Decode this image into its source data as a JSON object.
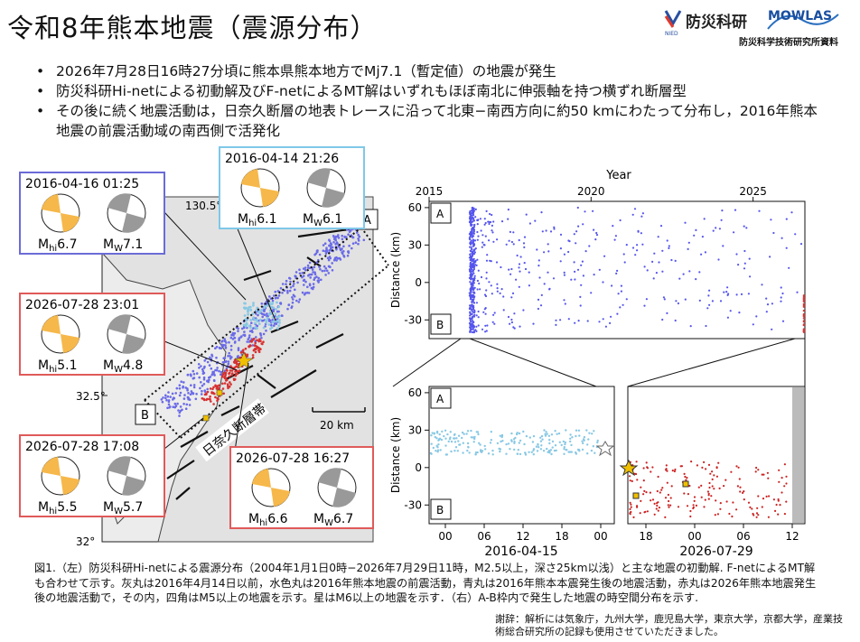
{
  "title": "令和8年熊本地震（震源分布）",
  "logos": {
    "nied_mark": "NIED",
    "nied_name": "防災科研",
    "mowlas": "MOWLAS",
    "subtitle": "防災科学技術研究所資料"
  },
  "bullets": [
    "2026年7月28日16時27分頃に熊本県熊本地方でMj7.1（暫定値）の地震が発生",
    "防災科研Hi-netによる初動解及びF-netによるMT解はいずれもほぼ南北に伸張軸を持つ横ずれ断層型",
    "その後に続く地震活動は，日奈久断層の地表トレースに沿って北東−南西方向に約50 kmにわたって分布し，2016年熊本地震の前震活動域の南西側で活発化"
  ],
  "map": {
    "lon_label": "130.5°",
    "lat_labels": [
      "32.5°",
      "32°"
    ],
    "scale_label": "20 km",
    "fault_label": "日奈久断層帯",
    "box_labels": [
      "A",
      "B"
    ]
  },
  "mechanisms": [
    {
      "datetime": "2016-04-16 01:25",
      "hi_mag": "6.7",
      "w_mag": "7.1",
      "color": "#6b6bd8"
    },
    {
      "datetime": "2016-04-14 21:26",
      "hi_mag": "6.1",
      "w_mag": "6.1",
      "color": "#7fc8e8"
    },
    {
      "datetime": "2026-07-28 23:01",
      "hi_mag": "5.1",
      "w_mag": "4.8",
      "color": "#e05a5a"
    },
    {
      "datetime": "2026-07-28 17:08",
      "hi_mag": "5.5",
      "w_mag": "5.7",
      "color": "#e05a5a"
    },
    {
      "datetime": "2026-07-28 16:27",
      "hi_mag": "6.6",
      "w_mag": "6.7",
      "color": "#e05a5a"
    }
  ],
  "mag_prefix": {
    "hi": "M",
    "hi_sub": "hi",
    "w": "M",
    "w_sub": "W"
  },
  "chart_data": [
    {
      "type": "scatter",
      "title": "Year",
      "xlabel": "Year",
      "ylabel": "Distance (km)",
      "xlim": [
        2015,
        2026.6
      ],
      "ylim": [
        -45,
        65
      ],
      "xticks": [
        "2015",
        "2020",
        "2025"
      ],
      "yticks": [
        "60",
        "30",
        "0",
        "-30"
      ],
      "box_labels": [
        "A",
        "B"
      ],
      "series": [
        {
          "color": "#5555ee",
          "marker": "dot",
          "density": "dense at 2016.3, sparse afterwards",
          "distance_range": [
            -40,
            60
          ]
        },
        {
          "color": "#dd3333",
          "marker": "dot",
          "x": 2026.57,
          "distance_range": [
            -40,
            -5
          ]
        }
      ]
    },
    {
      "type": "scatter",
      "xlabel": "2016-04-15",
      "ylabel": "Distance (km)",
      "ylim": [
        -45,
        65
      ],
      "xticks": [
        "00",
        "06",
        "12",
        "18",
        "00"
      ],
      "yticks": [
        "60",
        "30",
        "0",
        "-30"
      ],
      "box_labels": [
        "A",
        "B"
      ],
      "series": [
        {
          "color": "#88c8e4",
          "marker": "dot",
          "distance_range": [
            10,
            30
          ]
        }
      ],
      "stars": [
        {
          "hour": 21.5,
          "distance": 18
        },
        {
          "hour": 49,
          "distance": 17
        }
      ]
    },
    {
      "type": "scatter",
      "xlabel": "2026-07-29",
      "ylim": [
        -45,
        65
      ],
      "xticks": [
        "18",
        "00",
        "06",
        "12"
      ],
      "series": [
        {
          "color": "#cc2222",
          "marker": "dot",
          "distance_range": [
            -40,
            5
          ]
        }
      ],
      "stars": [
        {
          "hour": 16.45,
          "distance": 0
        }
      ],
      "squares": [
        {
          "hour": 17.1,
          "distance": -27
        },
        {
          "hour": 23.0,
          "distance": -15
        }
      ]
    }
  ],
  "caption": "図1.（左）防災科研Hi-netによる震源分布（2004年1月1日0時−2026年7月29日11時，M2.5以上，深さ25km以浅）と主な地震の初動解. F-netによるMT解も合わせて示す。灰丸は2016年4月14日以前，水色丸は2016年熊本地震の前震活動，青丸は2016年熊本本震発生後の地震活動，赤丸は2026年熊本地震発生後の地震活動で，その内，四角はM5以上の地震を示す。星はM6以上の地震を示す．（右）A-B枠内で発生した地震の時空間分布を示す.",
  "acknowledgement": "謝辞：解析には気象庁，九州大学，鹿児島大学，東京大学，京都大学，産業技術総合研究所の記録も使用させていただきました。"
}
